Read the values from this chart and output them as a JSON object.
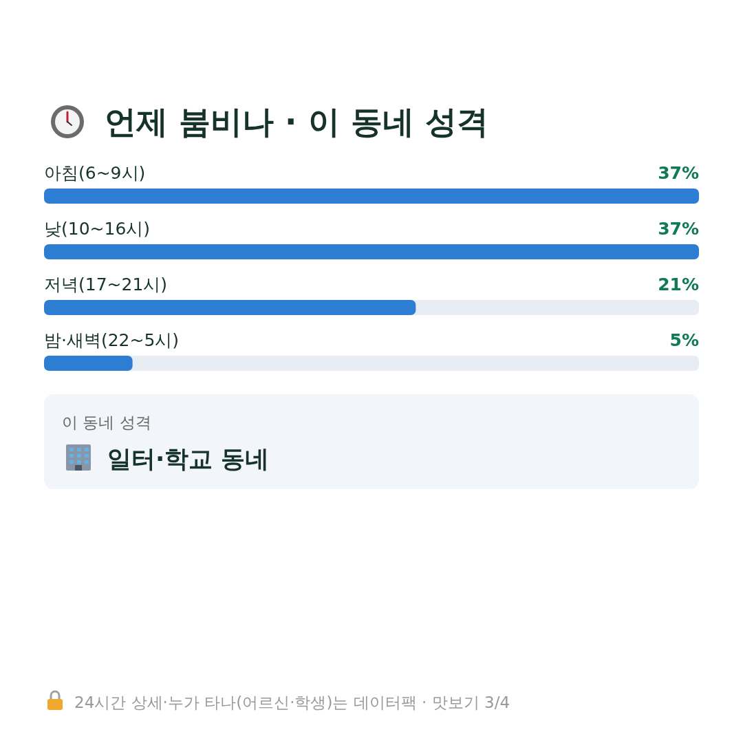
{
  "chart_data": {
    "type": "bar",
    "orientation": "horizontal",
    "title": "언제 붐비나 · 이 동네 성격",
    "categories": [
      "아침(6~9시)",
      "낮(10~16시)",
      "저녁(17~21시)",
      "밤·새벽(22~5시)"
    ],
    "values": [
      37,
      37,
      21,
      5
    ],
    "color": "#2d7dd2",
    "value_labels": [
      "37%",
      "37%",
      "21%",
      "5%"
    ],
    "annotations": [
      "이 동네 성격",
      "일터·학교 동네",
      "24시간 상세·누가 타나(어르신·학생)는 데이터팩 · 맛보기 3/4"
    ]
  }
}
